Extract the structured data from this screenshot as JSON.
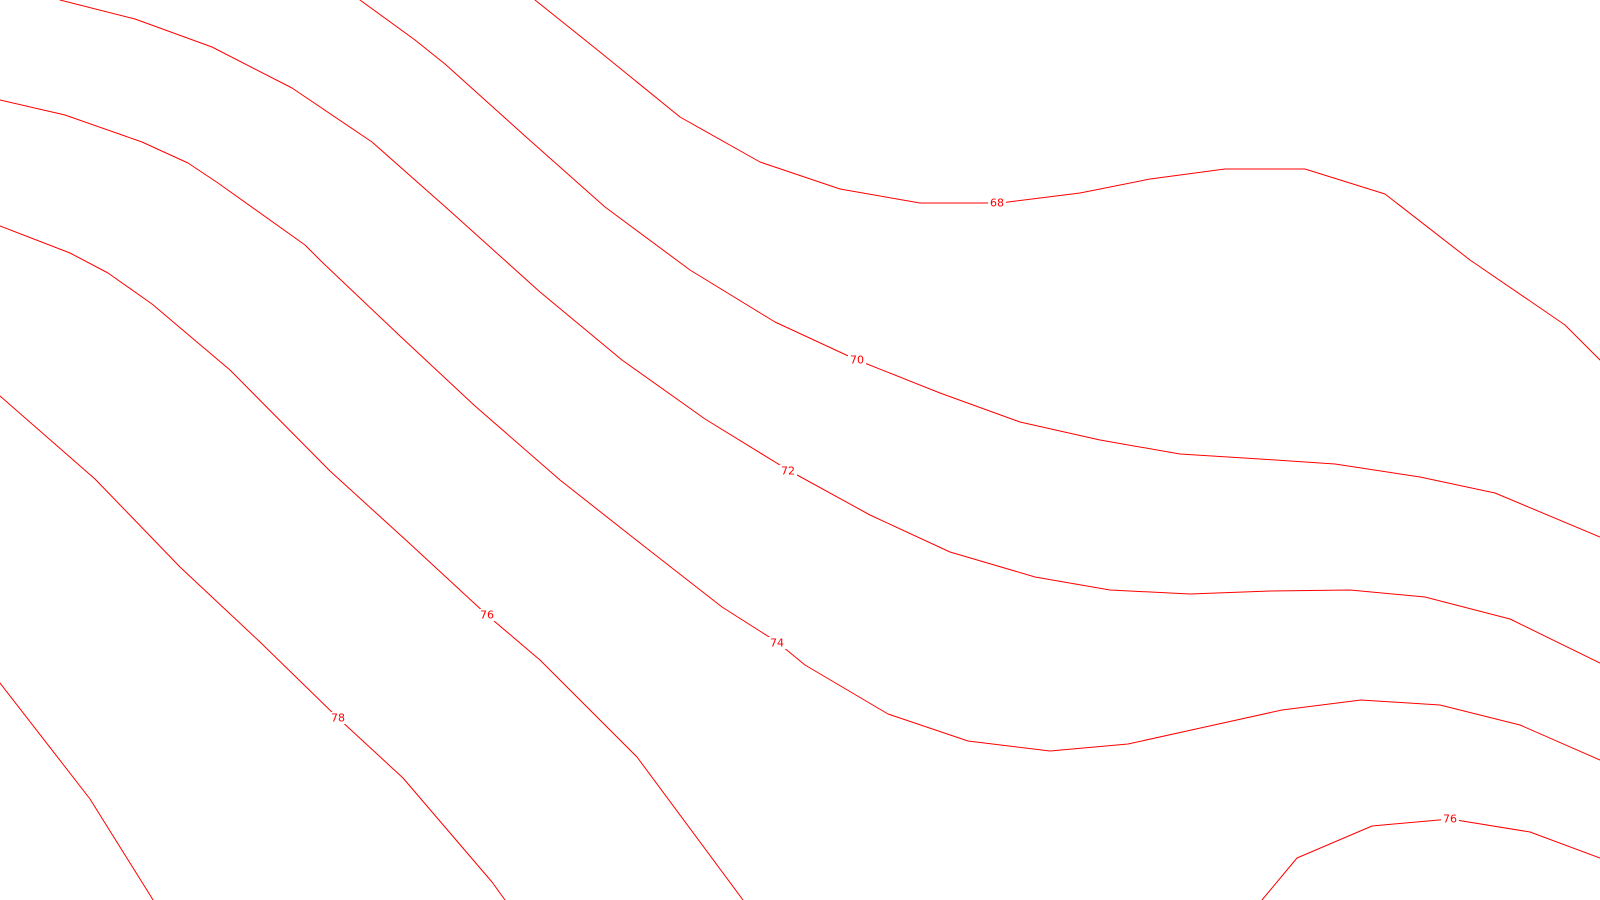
{
  "map": {
    "line_color": "#ff0000",
    "background_color": "#ffffff",
    "contour_labels": [
      "68",
      "70",
      "72",
      "74",
      "76",
      "78",
      "76"
    ]
  }
}
